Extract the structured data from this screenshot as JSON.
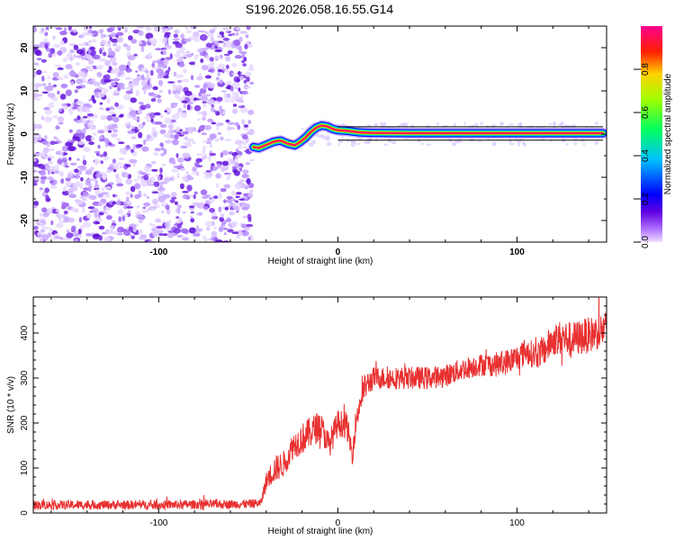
{
  "title": "S196.2026.058.16.55.G14",
  "chart_data": [
    {
      "type": "heatmap",
      "title": "S196.2026.058.16.55.G14",
      "xlabel": "Height of straight line (km)",
      "ylabel": "Frequency (Hz)",
      "xlim": [
        -170,
        150
      ],
      "ylim": [
        -25,
        25
      ],
      "xticks": [
        -100,
        0,
        100
      ],
      "xtick_labels": [
        "-100",
        "0",
        "100"
      ],
      "yticks": [
        -20,
        -10,
        0,
        10,
        20
      ],
      "ytick_labels": [
        "-20",
        "-10",
        "0",
        "10",
        "20"
      ],
      "noise_region_x": [
        -170,
        -48
      ],
      "ridge": {
        "x": [
          -47,
          -44,
          -40,
          -36,
          -32,
          -28,
          -24,
          -21,
          -18,
          -15,
          -12,
          -9,
          -6,
          -3,
          0,
          4,
          8,
          12,
          18,
          25,
          40,
          60,
          80,
          100,
          120,
          130,
          148
        ],
        "y": [
          -3,
          -3.2,
          -2.5,
          -1.8,
          -1.5,
          -2.2,
          -2.6,
          -1.8,
          -0.8,
          0.5,
          1.5,
          2,
          1.8,
          1.2,
          0.9,
          0.8,
          0.6,
          0.4,
          0.3,
          0.25,
          0.2,
          0.2,
          0.2,
          0.2,
          0.2,
          0.2,
          0.2
        ]
      },
      "colorbar": {
        "label": "Normalized spectral amplitude",
        "range": [
          0,
          1
        ],
        "ticks": [
          0,
          0.2,
          0.4,
          0.6,
          0.8
        ],
        "tick_labels": [
          "0.0",
          "0.2",
          "0.4",
          "0.6",
          "0.8"
        ],
        "colors": [
          "#f0e0ff",
          "#b070ff",
          "#6000e0",
          "#0000ff",
          "#00c0ff",
          "#00ff60",
          "#a0ff00",
          "#ffd000",
          "#ff2000",
          "#ff0090"
        ]
      }
    },
    {
      "type": "line",
      "xlabel": "Height of straight line (km)",
      "ylabel": "SNR (10 * v/v)",
      "xlim": [
        -170,
        150
      ],
      "ylim": [
        0,
        480
      ],
      "xticks": [
        -100,
        0,
        100
      ],
      "xtick_labels": [
        "-100",
        "0",
        "100"
      ],
      "yticks": [
        0,
        100,
        200,
        300,
        400
      ],
      "ytick_labels": [
        "0",
        "100",
        "200",
        "300",
        "400"
      ],
      "series": [
        {
          "name": "SNR",
          "color": "#e83030",
          "x": [
            -170,
            -100,
            -50,
            -43,
            -40,
            -36,
            -30,
            -25,
            -20,
            -15,
            -10,
            -7,
            -5,
            -2,
            0,
            5,
            8,
            10,
            12,
            15,
            20,
            25,
            30,
            40,
            50,
            60,
            70,
            80,
            90,
            100,
            105,
            110,
            115,
            120,
            125,
            130,
            140,
            150
          ],
          "y": [
            18,
            18,
            20,
            22,
            70,
            95,
            110,
            150,
            165,
            180,
            195,
            170,
            150,
            180,
            200,
            195,
            130,
            200,
            240,
            280,
            300,
            300,
            300,
            300,
            300,
            305,
            320,
            330,
            330,
            345,
            360,
            350,
            360,
            385,
            390,
            385,
            395,
            410
          ],
          "noise_amplitude": [
            10,
            10,
            10,
            10,
            20,
            30,
            30,
            30,
            35,
            35,
            35,
            30,
            30,
            30,
            30,
            30,
            25,
            30,
            30,
            30,
            25,
            25,
            25,
            25,
            25,
            25,
            25,
            25,
            28,
            30,
            30,
            30,
            35,
            35,
            40,
            40,
            40,
            40
          ]
        }
      ]
    }
  ]
}
